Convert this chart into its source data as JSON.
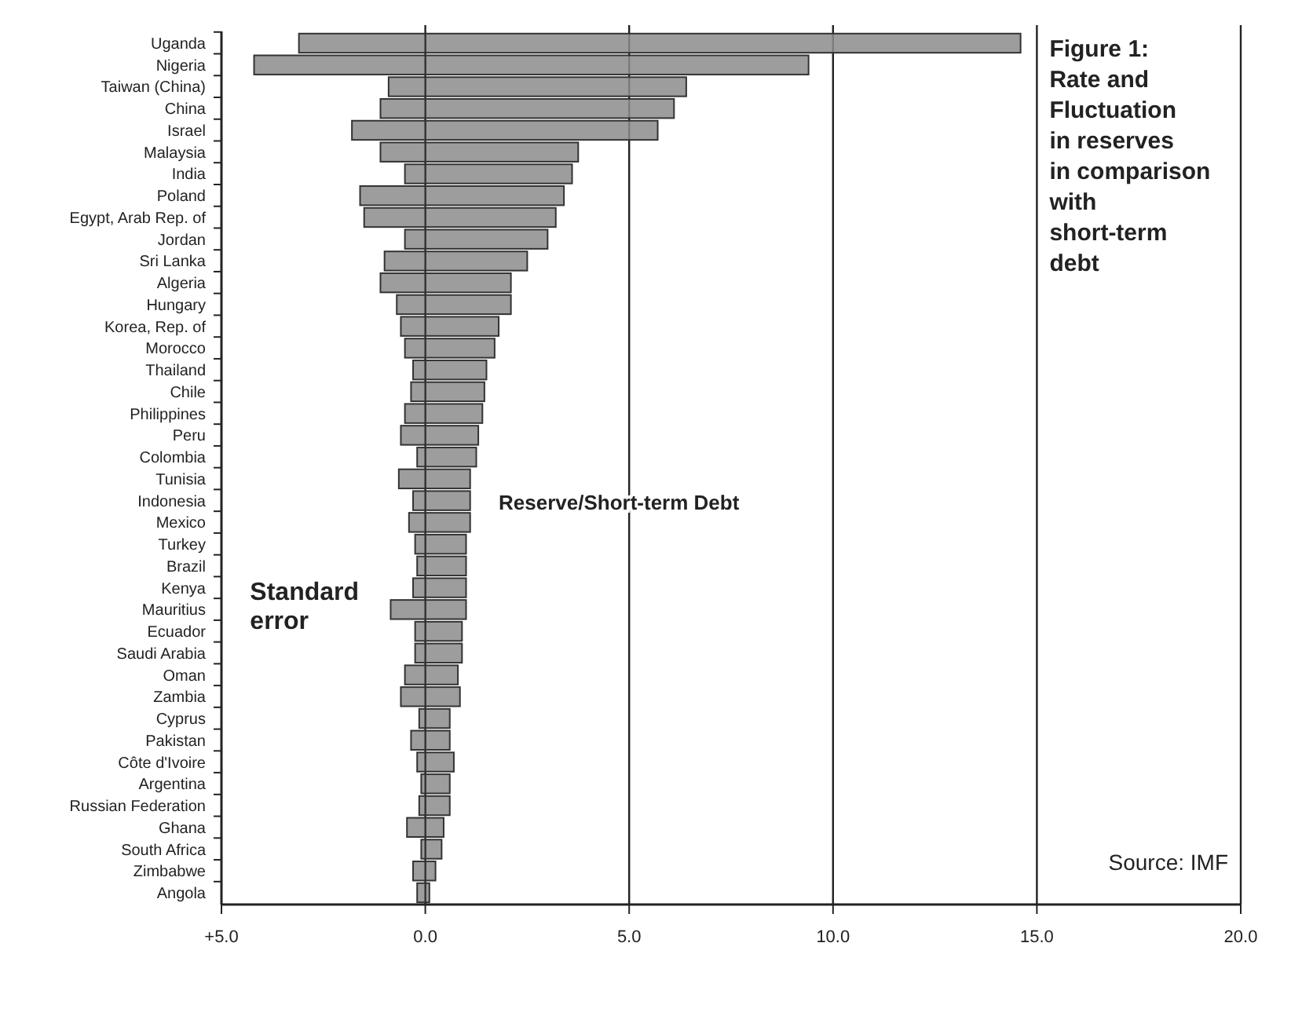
{
  "chart_data": {
    "type": "bar",
    "orientation": "horizontal",
    "title": "Figure 1: Rate and Fluctuation in reserves in comparison with short-term debt",
    "categories": [
      "Uganda",
      "Nigeria",
      "Taiwan (China)",
      "China",
      "Israel",
      "Malaysia",
      "India",
      "Poland",
      "Egypt, Arab Rep. of",
      "Jordan",
      "Sri Lanka",
      "Algeria",
      "Hungary",
      "Korea, Rep. of",
      "Morocco",
      "Thailand",
      "Chile",
      "Philippines",
      "Peru",
      "Colombia",
      "Tunisia",
      "Indonesia",
      "Mexico",
      "Turkey",
      "Brazil",
      "Kenya",
      "Mauritius",
      "Ecuador",
      "Saudi Arabia",
      "Oman",
      "Zambia",
      "Cyprus",
      "Pakistan",
      "Côte d'Ivoire",
      "Argentina",
      "Russian Federation",
      "Ghana",
      "South Africa",
      "Zimbabwe",
      "Angola"
    ],
    "series": [
      {
        "name": "Reserve/Short-term Debt",
        "color": "#8c8c8c",
        "values": [
          14.6,
          9.4,
          6.4,
          6.1,
          5.7,
          3.75,
          3.6,
          3.4,
          3.2,
          3.0,
          2.5,
          2.1,
          2.1,
          1.8,
          1.7,
          1.5,
          1.45,
          1.4,
          1.3,
          1.25,
          1.1,
          1.1,
          1.1,
          1.0,
          1.0,
          1.0,
          1.0,
          0.9,
          0.9,
          0.8,
          0.85,
          0.6,
          0.6,
          0.7,
          0.6,
          0.6,
          0.45,
          0.4,
          0.25,
          0.1
        ]
      },
      {
        "name": "Standard error",
        "color": "#8c8c8c",
        "values": [
          -3.1,
          -4.2,
          -0.9,
          -1.1,
          -1.8,
          -1.1,
          -0.5,
          -1.6,
          -1.5,
          -0.5,
          -1.0,
          -1.1,
          -0.7,
          -0.6,
          -0.5,
          -0.3,
          -0.35,
          -0.5,
          -0.6,
          -0.2,
          -0.65,
          -0.3,
          -0.4,
          -0.25,
          -0.2,
          -0.3,
          -0.85,
          -0.25,
          -0.25,
          -0.5,
          -0.6,
          -0.15,
          -0.35,
          -0.2,
          -0.1,
          -0.15,
          -0.45,
          -0.1,
          -0.3,
          -0.2
        ]
      }
    ],
    "xlim": [
      -5,
      20
    ],
    "xticks": [
      {
        "value": -5,
        "label": "+5.0"
      },
      {
        "value": 0,
        "label": "0.0"
      },
      {
        "value": 5,
        "label": "5.0"
      },
      {
        "value": 10,
        "label": "10.0"
      },
      {
        "value": 15,
        "label": "15.0"
      },
      {
        "value": 20,
        "label": "20.0"
      }
    ],
    "grid": "x",
    "annotations": [
      "Source: IMF"
    ]
  }
}
